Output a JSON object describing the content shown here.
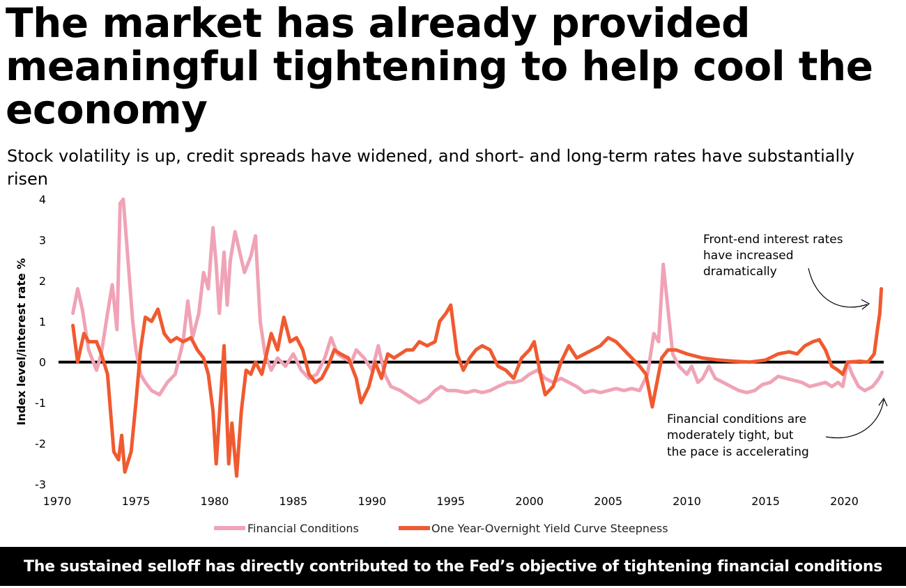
{
  "chart_data": {
    "type": "line",
    "title": "The market has already provided meaningful tightening to help cool the economy",
    "subtitle": "Stock volatility is up, credit spreads have widened, and short- and long-term rates have substantially risen",
    "ylabel": "Index level/interest rate %",
    "xlabel": "",
    "xlim": [
      1970,
      2022.5
    ],
    "ylim": [
      -3,
      4
    ],
    "x_ticks": [
      "1970",
      "1975",
      "1980",
      "1985",
      "1990",
      "1995",
      "2000",
      "2005",
      "2010",
      "2015",
      "2020"
    ],
    "y_ticks": [
      "4",
      "3",
      "2",
      "1",
      "0",
      "-1",
      "-2",
      "-3"
    ],
    "zero_line": 0,
    "colors": {
      "financial_conditions": "#f0a3b6",
      "yield_curve": "#f05a30",
      "zero": "#000000"
    },
    "series": [
      {
        "name": "Financial Conditions",
        "points": [
          [
            1971.0,
            1.2
          ],
          [
            1971.3,
            1.8
          ],
          [
            1971.6,
            1.3
          ],
          [
            1972.0,
            0.3
          ],
          [
            1972.5,
            -0.2
          ],
          [
            1972.8,
            0.2
          ],
          [
            1973.2,
            1.2
          ],
          [
            1973.5,
            1.9
          ],
          [
            1973.8,
            0.8
          ],
          [
            1974.0,
            3.9
          ],
          [
            1974.2,
            4.0
          ],
          [
            1974.5,
            2.5
          ],
          [
            1974.8,
            1.0
          ],
          [
            1975.0,
            0.3
          ],
          [
            1975.3,
            -0.3
          ],
          [
            1975.6,
            -0.5
          ],
          [
            1976.0,
            -0.7
          ],
          [
            1976.5,
            -0.8
          ],
          [
            1977.0,
            -0.5
          ],
          [
            1977.5,
            -0.3
          ],
          [
            1978.0,
            0.5
          ],
          [
            1978.3,
            1.5
          ],
          [
            1978.6,
            0.6
          ],
          [
            1979.0,
            1.2
          ],
          [
            1979.3,
            2.2
          ],
          [
            1979.6,
            1.8
          ],
          [
            1979.9,
            3.3
          ],
          [
            1980.1,
            2.4
          ],
          [
            1980.3,
            1.2
          ],
          [
            1980.6,
            2.7
          ],
          [
            1980.8,
            1.4
          ],
          [
            1981.0,
            2.5
          ],
          [
            1981.3,
            3.2
          ],
          [
            1981.6,
            2.7
          ],
          [
            1981.9,
            2.2
          ],
          [
            1982.3,
            2.6
          ],
          [
            1982.6,
            3.1
          ],
          [
            1982.9,
            1.0
          ],
          [
            1983.2,
            0.2
          ],
          [
            1983.6,
            -0.2
          ],
          [
            1984.0,
            0.1
          ],
          [
            1984.5,
            -0.1
          ],
          [
            1985.0,
            0.2
          ],
          [
            1985.5,
            -0.2
          ],
          [
            1986.0,
            -0.4
          ],
          [
            1986.5,
            -0.3
          ],
          [
            1987.0,
            0.1
          ],
          [
            1987.4,
            0.6
          ],
          [
            1987.8,
            0.2
          ],
          [
            1988.2,
            0.1
          ],
          [
            1988.7,
            0.0
          ],
          [
            1989.0,
            0.3
          ],
          [
            1989.5,
            0.1
          ],
          [
            1990.0,
            -0.2
          ],
          [
            1990.4,
            0.4
          ],
          [
            1990.8,
            -0.3
          ],
          [
            1991.2,
            -0.6
          ],
          [
            1991.8,
            -0.7
          ],
          [
            1992.2,
            -0.8
          ],
          [
            1992.6,
            -0.9
          ],
          [
            1993.0,
            -1.0
          ],
          [
            1993.5,
            -0.9
          ],
          [
            1994.0,
            -0.7
          ],
          [
            1994.4,
            -0.6
          ],
          [
            1994.8,
            -0.7
          ],
          [
            1995.3,
            -0.7
          ],
          [
            1996.0,
            -0.75
          ],
          [
            1996.5,
            -0.7
          ],
          [
            1997.0,
            -0.75
          ],
          [
            1997.5,
            -0.7
          ],
          [
            1998.0,
            -0.6
          ],
          [
            1998.6,
            -0.5
          ],
          [
            1999.0,
            -0.5
          ],
          [
            1999.5,
            -0.45
          ],
          [
            2000.0,
            -0.3
          ],
          [
            2000.5,
            -0.2
          ],
          [
            2001.0,
            -0.4
          ],
          [
            2001.5,
            -0.5
          ],
          [
            2002.0,
            -0.4
          ],
          [
            2002.5,
            -0.5
          ],
          [
            2003.0,
            -0.6
          ],
          [
            2003.5,
            -0.75
          ],
          [
            2004.0,
            -0.7
          ],
          [
            2004.5,
            -0.75
          ],
          [
            2005.0,
            -0.7
          ],
          [
            2005.5,
            -0.65
          ],
          [
            2006.0,
            -0.7
          ],
          [
            2006.5,
            -0.65
          ],
          [
            2007.0,
            -0.7
          ],
          [
            2007.5,
            -0.3
          ],
          [
            2007.9,
            0.7
          ],
          [
            2008.2,
            0.5
          ],
          [
            2008.5,
            2.4
          ],
          [
            2008.8,
            1.3
          ],
          [
            2009.1,
            0.2
          ],
          [
            2009.5,
            -0.1
          ],
          [
            2010.0,
            -0.3
          ],
          [
            2010.3,
            -0.1
          ],
          [
            2010.7,
            -0.5
          ],
          [
            2011.0,
            -0.4
          ],
          [
            2011.4,
            -0.1
          ],
          [
            2011.8,
            -0.4
          ],
          [
            2012.3,
            -0.5
          ],
          [
            2012.8,
            -0.6
          ],
          [
            2013.3,
            -0.7
          ],
          [
            2013.8,
            -0.75
          ],
          [
            2014.3,
            -0.7
          ],
          [
            2014.8,
            -0.55
          ],
          [
            2015.3,
            -0.5
          ],
          [
            2015.8,
            -0.35
          ],
          [
            2016.3,
            -0.4
          ],
          [
            2016.8,
            -0.45
          ],
          [
            2017.3,
            -0.5
          ],
          [
            2017.8,
            -0.6
          ],
          [
            2018.3,
            -0.55
          ],
          [
            2018.8,
            -0.5
          ],
          [
            2019.2,
            -0.6
          ],
          [
            2019.6,
            -0.5
          ],
          [
            2019.9,
            -0.6
          ],
          [
            2020.2,
            0.0
          ],
          [
            2020.5,
            -0.3
          ],
          [
            2020.9,
            -0.6
          ],
          [
            2021.3,
            -0.7
          ],
          [
            2021.8,
            -0.6
          ],
          [
            2022.2,
            -0.4
          ],
          [
            2022.4,
            -0.25
          ]
        ]
      },
      {
        "name": "One Year-Overnight Yield Curve Steepness",
        "points": [
          [
            1971.0,
            0.9
          ],
          [
            1971.3,
            0.0
          ],
          [
            1971.7,
            0.7
          ],
          [
            1972.0,
            0.5
          ],
          [
            1972.5,
            0.5
          ],
          [
            1972.8,
            0.2
          ],
          [
            1973.2,
            -0.3
          ],
          [
            1973.6,
            -2.2
          ],
          [
            1973.9,
            -2.4
          ],
          [
            1974.1,
            -1.8
          ],
          [
            1974.3,
            -2.7
          ],
          [
            1974.7,
            -2.2
          ],
          [
            1975.0,
            -1.0
          ],
          [
            1975.3,
            0.3
          ],
          [
            1975.6,
            1.1
          ],
          [
            1976.0,
            1.0
          ],
          [
            1976.4,
            1.3
          ],
          [
            1976.8,
            0.7
          ],
          [
            1977.2,
            0.5
          ],
          [
            1977.6,
            0.6
          ],
          [
            1978.0,
            0.5
          ],
          [
            1978.5,
            0.6
          ],
          [
            1978.9,
            0.3
          ],
          [
            1979.3,
            0.1
          ],
          [
            1979.6,
            -0.3
          ],
          [
            1979.9,
            -1.2
          ],
          [
            1980.1,
            -2.5
          ],
          [
            1980.4,
            -0.8
          ],
          [
            1980.6,
            0.4
          ],
          [
            1980.9,
            -2.5
          ],
          [
            1981.1,
            -1.5
          ],
          [
            1981.4,
            -2.8
          ],
          [
            1981.7,
            -1.2
          ],
          [
            1982.0,
            -0.2
          ],
          [
            1982.3,
            -0.3
          ],
          [
            1982.6,
            0.0
          ],
          [
            1983.0,
            -0.3
          ],
          [
            1983.3,
            0.2
          ],
          [
            1983.6,
            0.7
          ],
          [
            1984.0,
            0.3
          ],
          [
            1984.4,
            1.1
          ],
          [
            1984.8,
            0.5
          ],
          [
            1985.2,
            0.6
          ],
          [
            1985.6,
            0.3
          ],
          [
            1986.0,
            -0.3
          ],
          [
            1986.4,
            -0.5
          ],
          [
            1986.8,
            -0.4
          ],
          [
            1987.2,
            -0.1
          ],
          [
            1987.6,
            0.3
          ],
          [
            1988.0,
            0.2
          ],
          [
            1988.5,
            0.1
          ],
          [
            1989.0,
            -0.4
          ],
          [
            1989.3,
            -1.0
          ],
          [
            1989.8,
            -0.6
          ],
          [
            1990.2,
            0.0
          ],
          [
            1990.6,
            -0.4
          ],
          [
            1991.0,
            0.2
          ],
          [
            1991.4,
            0.1
          ],
          [
            1991.8,
            0.2
          ],
          [
            1992.2,
            0.3
          ],
          [
            1992.6,
            0.3
          ],
          [
            1993.0,
            0.5
          ],
          [
            1993.5,
            0.4
          ],
          [
            1994.0,
            0.5
          ],
          [
            1994.3,
            1.0
          ],
          [
            1994.7,
            1.2
          ],
          [
            1995.0,
            1.4
          ],
          [
            1995.4,
            0.2
          ],
          [
            1995.8,
            -0.2
          ],
          [
            1996.2,
            0.1
          ],
          [
            1996.6,
            0.3
          ],
          [
            1997.0,
            0.4
          ],
          [
            1997.5,
            0.3
          ],
          [
            1998.0,
            -0.1
          ],
          [
            1998.5,
            -0.2
          ],
          [
            1999.0,
            -0.4
          ],
          [
            1999.5,
            0.1
          ],
          [
            2000.0,
            0.3
          ],
          [
            2000.3,
            0.5
          ],
          [
            2000.7,
            -0.3
          ],
          [
            2001.0,
            -0.8
          ],
          [
            2001.5,
            -0.6
          ],
          [
            2002.0,
            0.0
          ],
          [
            2002.5,
            0.4
          ],
          [
            2003.0,
            0.1
          ],
          [
            2003.5,
            0.2
          ],
          [
            2004.0,
            0.3
          ],
          [
            2004.5,
            0.4
          ],
          [
            2005.0,
            0.6
          ],
          [
            2005.5,
            0.5
          ],
          [
            2006.0,
            0.3
          ],
          [
            2006.5,
            0.1
          ],
          [
            2007.0,
            -0.1
          ],
          [
            2007.4,
            -0.3
          ],
          [
            2007.8,
            -1.1
          ],
          [
            2008.1,
            -0.5
          ],
          [
            2008.4,
            0.1
          ],
          [
            2008.8,
            0.3
          ],
          [
            2009.3,
            0.3
          ],
          [
            2010.0,
            0.2
          ],
          [
            2011.0,
            0.1
          ],
          [
            2012.0,
            0.05
          ],
          [
            2013.0,
            0.02
          ],
          [
            2014.0,
            0.0
          ],
          [
            2015.0,
            0.05
          ],
          [
            2015.8,
            0.2
          ],
          [
            2016.5,
            0.25
          ],
          [
            2017.0,
            0.2
          ],
          [
            2017.5,
            0.4
          ],
          [
            2018.0,
            0.5
          ],
          [
            2018.4,
            0.55
          ],
          [
            2018.8,
            0.3
          ],
          [
            2019.2,
            -0.1
          ],
          [
            2019.6,
            -0.2
          ],
          [
            2019.9,
            -0.3
          ],
          [
            2020.2,
            0.0
          ],
          [
            2021.0,
            0.02
          ],
          [
            2021.5,
            0.0
          ],
          [
            2021.9,
            0.2
          ],
          [
            2022.1,
            0.8
          ],
          [
            2022.25,
            1.2
          ],
          [
            2022.35,
            1.8
          ]
        ]
      }
    ],
    "annotations": [
      {
        "lines": [
          "Front-end interest rates",
          "have increased",
          "dramatically"
        ]
      },
      {
        "lines": [
          "Financial conditions are",
          "moderately tight, but",
          "the pace is accelerating"
        ]
      }
    ],
    "legend": {
      "position": "bottom-center"
    }
  },
  "footer": {
    "text": "The sustained selloff has directly contributed to the Fed’s objective of tightening financial conditions"
  }
}
